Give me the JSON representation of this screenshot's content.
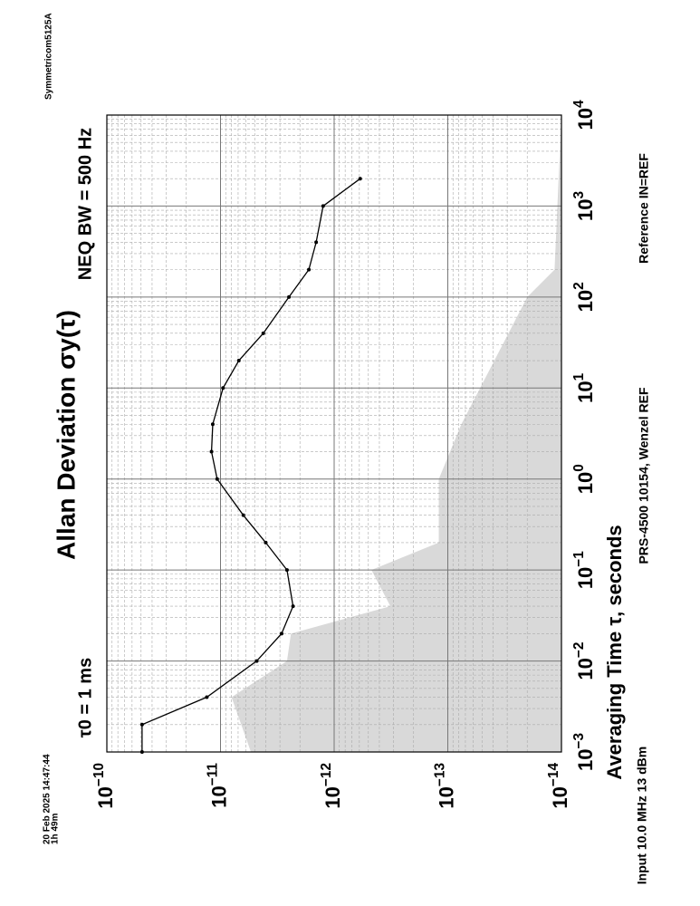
{
  "chart_data": {
    "type": "line",
    "title": "Allan Deviation σy(τ)",
    "subtitle": "NEQ BW = 500 Hz",
    "annotation": "τ0 = 1 ms",
    "x_label": "Averaging Time τ, seconds",
    "footer_left": "Input 10.0 MHz 13 dBm",
    "footer_center": "PRS-4500 10154, Wenzel REF",
    "footer_right": "Reference IN=REF",
    "timestamp": "20 Feb 2025 14:47:44",
    "duration": "1h 49m",
    "instrument": "Symmetricom5125A",
    "log_x": true,
    "log_y": true,
    "grid": true,
    "x": [
      0.001,
      0.002,
      0.004,
      0.01,
      0.02,
      0.04,
      0.1,
      0.2,
      0.4,
      1,
      2,
      4,
      10,
      20,
      40,
      100,
      200,
      400,
      1000,
      2000
    ],
    "series": [
      {
        "color": "#000000",
        "values": [
          4.9e-11,
          4.9e-11,
          1.32e-11,
          4.8e-12,
          2.9e-12,
          2.3e-12,
          2.6e-12,
          4e-12,
          6.3e-12,
          1.07e-11,
          1.2e-11,
          1.17e-11,
          9.5e-12,
          6.9e-12,
          4.2e-12,
          2.5e-12,
          1.67e-12,
          1.44e-12,
          1.25e-12,
          5.9e-13
        ]
      }
    ],
    "floor": {
      "color": "#d9d9d9",
      "x": [
        0.001,
        0.004,
        0.01,
        0.02,
        0.04,
        0.1,
        0.2,
        1,
        4,
        100,
        200
      ],
      "values": [
        5.4e-12,
        8e-12,
        2.6e-12,
        2.4e-12,
        3.2e-13,
        4.7e-13,
        1.2e-13,
        1.2e-13,
        7.6e-14,
        2e-14,
        1.15e-14
      ]
    },
    "xlim": [
      0.001,
      10000
    ],
    "ylim": [
      1e-14,
      1e-10
    ],
    "xticks": [
      {
        "value": 0.001,
        "label": "10−3"
      },
      {
        "value": 0.01,
        "label": "10−2"
      },
      {
        "value": 0.1,
        "label": "10−1"
      },
      {
        "value": 1,
        "label": "100"
      },
      {
        "value": 10,
        "label": "101"
      },
      {
        "value": 100,
        "label": "102"
      },
      {
        "value": 1000,
        "label": "103"
      },
      {
        "value": 10000,
        "label": "104"
      }
    ],
    "yticks": [
      {
        "value": 1e-10,
        "label": "10−10"
      },
      {
        "value": 1e-11,
        "label": "10−11"
      },
      {
        "value": 1e-12,
        "label": "10−12"
      },
      {
        "value": 1e-13,
        "label": "10−13"
      },
      {
        "value": 1e-14,
        "label": "10−14"
      }
    ]
  }
}
